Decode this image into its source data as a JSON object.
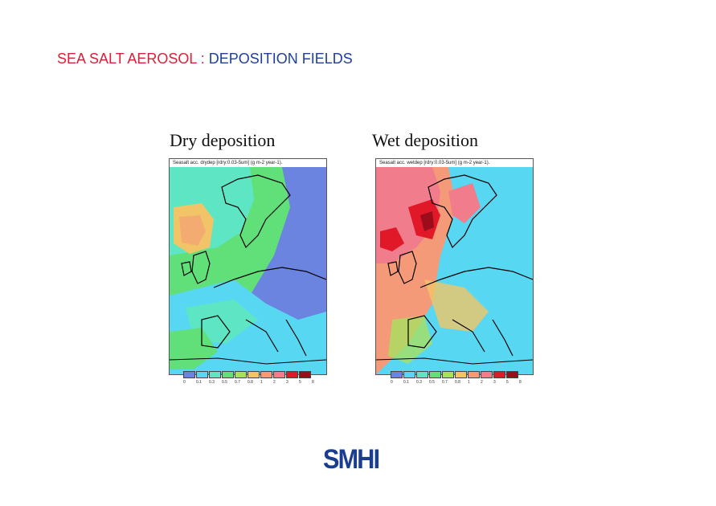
{
  "slide": {
    "title_part1": "SEA SALT AEROSOL : ",
    "title_part2": "DEPOSITION FIELDS",
    "title_color1": "#d8203a",
    "title_color2": "#1f3f9c"
  },
  "panels": [
    {
      "title": "Dry deposition",
      "map_header": "Seasalt acc. drydep [rdry:0.03-5um] (g m-2 year-1).",
      "legend_colors": [
        "#6b84e0",
        "#57d7f2",
        "#5ee6c4",
        "#61e07a",
        "#a8e060",
        "#f1c567",
        "#f59a78",
        "#f07c8c",
        "#e01828",
        "#9b0d1a"
      ],
      "legend_ticks": [
        "0",
        "0.1",
        "0.3",
        "0.5",
        "0.7",
        "0.8",
        "1",
        "2",
        "3",
        "5",
        "8"
      ]
    },
    {
      "title": "Wet deposition",
      "map_header": "Seasalt acc. wetdep [rdry:0.03-5um] (g m-2 year-1).",
      "legend_colors": [
        "#6b84e0",
        "#57d7f2",
        "#5ee6c4",
        "#61e07a",
        "#a8e060",
        "#f1c567",
        "#f59a78",
        "#f07c8c",
        "#e01828",
        "#9b0d1a"
      ],
      "legend_ticks": [
        "0",
        "0.1",
        "0.3",
        "0.5",
        "0.7",
        "0.8",
        "1",
        "2",
        "3",
        "5",
        "8"
      ]
    }
  ],
  "logo": "SMHI"
}
